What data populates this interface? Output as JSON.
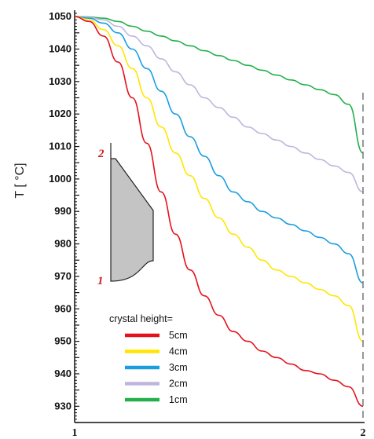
{
  "chart_data": {
    "type": "line",
    "title": "",
    "xlabel": "",
    "ylabel": "T [ °C]",
    "ylim": [
      925,
      1051
    ],
    "yticks": [
      930,
      940,
      950,
      960,
      970,
      980,
      990,
      1000,
      1010,
      1020,
      1030,
      1040,
      1050
    ],
    "xlim": [
      0,
      100
    ],
    "xtick_labels": [
      "1",
      "2"
    ],
    "grid": false,
    "legend": {
      "title": "crystal height=",
      "placement": "bottom-left"
    },
    "x": [
      0,
      5,
      10,
      15,
      20,
      25,
      30,
      35,
      40,
      45,
      50,
      55,
      60,
      65,
      70,
      75,
      80,
      85,
      90,
      95,
      100
    ],
    "series": [
      {
        "name": "5cm",
        "color": "#e4121c",
        "values": [
          1050,
          1048.5,
          1044,
          1036,
          1025,
          1011,
          996,
          983,
          972,
          964,
          958,
          953,
          950,
          947,
          945,
          943,
          941,
          940,
          938,
          936,
          930
        ]
      },
      {
        "name": "4cm",
        "color": "#ffe600",
        "values": [
          1050,
          1049,
          1046,
          1041,
          1034,
          1025,
          1016,
          1008,
          1001,
          994,
          988,
          983,
          979,
          975,
          972,
          970,
          968,
          966,
          964,
          961,
          950
        ]
      },
      {
        "name": "3cm",
        "color": "#1a9ee0",
        "values": [
          1050,
          1049.5,
          1048,
          1045,
          1040,
          1034,
          1027,
          1020,
          1013,
          1007,
          1001,
          996,
          993,
          990,
          988,
          986,
          984,
          982,
          980,
          977,
          968
        ]
      },
      {
        "name": "2cm",
        "color": "#bfb5dd",
        "values": [
          1050,
          1049.8,
          1049,
          1047,
          1044,
          1041,
          1037,
          1033,
          1029,
          1025,
          1022,
          1019,
          1016,
          1014,
          1012,
          1010,
          1008,
          1006,
          1004,
          1002,
          996
        ]
      },
      {
        "name": "1cm",
        "color": "#22b04b",
        "values": [
          1050,
          1049.9,
          1049.5,
          1048.5,
          1047,
          1045.5,
          1044,
          1042.5,
          1041,
          1039.5,
          1038,
          1036.5,
          1035,
          1033.5,
          1032,
          1030.5,
          1029,
          1027.5,
          1026,
          1023,
          1008
        ]
      }
    ],
    "annotations": [
      {
        "text": "2"
      },
      {
        "text": "1"
      }
    ]
  }
}
